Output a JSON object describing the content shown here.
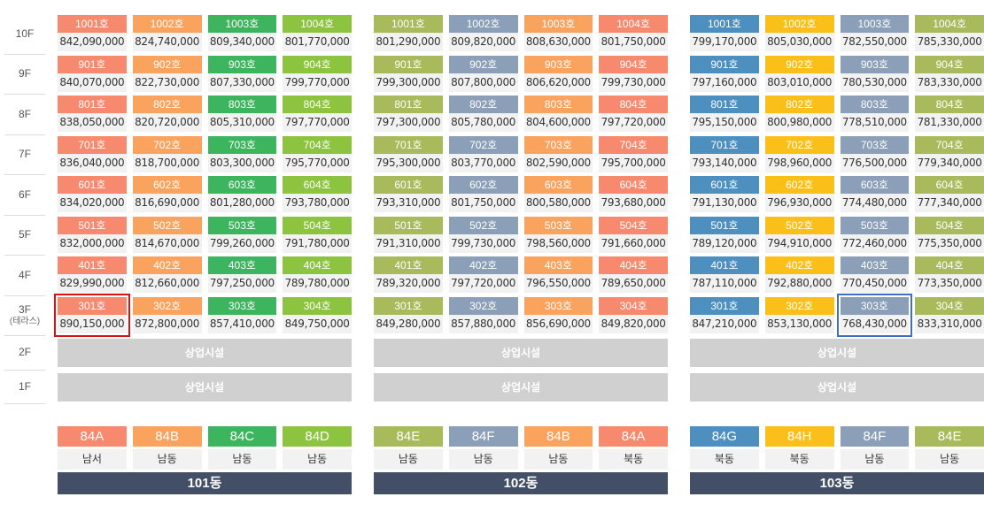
{
  "colors": {
    "salmon": "#f7896f",
    "orange": "#f9a35f",
    "green": "#3db55e",
    "lime": "#8dc43f",
    "olive": "#a9ba5c",
    "slate": "#8c9fb8",
    "blue": "#4d8fbf",
    "gold": "#fbbf1a",
    "commercial_gray": "#d0d0d0",
    "building_label": "#434f66",
    "highlight_red": "#dd1111",
    "highlight_blue": "#3f6fc4"
  },
  "floors": [
    {
      "label": "10F",
      "sub": ""
    },
    {
      "label": "9F",
      "sub": ""
    },
    {
      "label": "8F",
      "sub": ""
    },
    {
      "label": "7F",
      "sub": ""
    },
    {
      "label": "6F",
      "sub": ""
    },
    {
      "label": "5F",
      "sub": ""
    },
    {
      "label": "4F",
      "sub": ""
    },
    {
      "label": "3F",
      "sub": "(테라스)"
    },
    {
      "label": "2F",
      "sub": ""
    },
    {
      "label": "1F",
      "sub": ""
    }
  ],
  "buildings": [
    {
      "name": "101동",
      "column_colors": [
        "salmon",
        "orange",
        "green",
        "lime"
      ],
      "types": [
        "84A",
        "84B",
        "84C",
        "84D"
      ],
      "directions": [
        "남서",
        "남동",
        "남동",
        "남동"
      ],
      "commercial": [
        "상업시설",
        "상업시설"
      ],
      "rows": [
        [
          [
            "1001호",
            "842,090,000"
          ],
          [
            "1002호",
            "824,740,000"
          ],
          [
            "1003호",
            "809,340,000"
          ],
          [
            "1004호",
            "801,770,000"
          ]
        ],
        [
          [
            "901호",
            "840,070,000"
          ],
          [
            "902호",
            "822,730,000"
          ],
          [
            "903호",
            "807,330,000"
          ],
          [
            "904호",
            "799,770,000"
          ]
        ],
        [
          [
            "801호",
            "838,050,000"
          ],
          [
            "802호",
            "820,720,000"
          ],
          [
            "803호",
            "805,310,000"
          ],
          [
            "804호",
            "797,770,000"
          ]
        ],
        [
          [
            "701호",
            "836,040,000"
          ],
          [
            "702호",
            "818,700,000"
          ],
          [
            "703호",
            "803,300,000"
          ],
          [
            "704호",
            "795,770,000"
          ]
        ],
        [
          [
            "601호",
            "834,020,000"
          ],
          [
            "602호",
            "816,690,000"
          ],
          [
            "603호",
            "801,280,000"
          ],
          [
            "604호",
            "793,780,000"
          ]
        ],
        [
          [
            "501호",
            "832,000,000"
          ],
          [
            "502호",
            "814,670,000"
          ],
          [
            "503호",
            "799,260,000"
          ],
          [
            "504호",
            "791,780,000"
          ]
        ],
        [
          [
            "401호",
            "829,990,000"
          ],
          [
            "402호",
            "812,660,000"
          ],
          [
            "403호",
            "797,250,000"
          ],
          [
            "404호",
            "789,780,000"
          ]
        ],
        [
          [
            "301호",
            "890,150,000"
          ],
          [
            "302호",
            "872,800,000"
          ],
          [
            "303호",
            "857,410,000"
          ],
          [
            "304호",
            "849,750,000"
          ]
        ]
      ]
    },
    {
      "name": "102동",
      "column_colors": [
        "olive",
        "slate",
        "orange",
        "salmon"
      ],
      "types": [
        "84E",
        "84F",
        "84B",
        "84A"
      ],
      "directions": [
        "남동",
        "남동",
        "남동",
        "북동"
      ],
      "commercial": [
        "상업시설",
        "상업시설"
      ],
      "rows": [
        [
          [
            "1001호",
            "801,290,000"
          ],
          [
            "1002호",
            "809,820,000"
          ],
          [
            "1003호",
            "808,630,000"
          ],
          [
            "1004호",
            "801,750,000"
          ]
        ],
        [
          [
            "901호",
            "799,300,000"
          ],
          [
            "902호",
            "807,800,000"
          ],
          [
            "903호",
            "806,620,000"
          ],
          [
            "904호",
            "799,730,000"
          ]
        ],
        [
          [
            "801호",
            "797,300,000"
          ],
          [
            "802호",
            "805,780,000"
          ],
          [
            "803호",
            "804,600,000"
          ],
          [
            "804호",
            "797,720,000"
          ]
        ],
        [
          [
            "701호",
            "795,300,000"
          ],
          [
            "702호",
            "803,770,000"
          ],
          [
            "703호",
            "802,590,000"
          ],
          [
            "704호",
            "795,700,000"
          ]
        ],
        [
          [
            "601호",
            "793,310,000"
          ],
          [
            "602호",
            "801,750,000"
          ],
          [
            "603호",
            "800,580,000"
          ],
          [
            "604호",
            "793,680,000"
          ]
        ],
        [
          [
            "501호",
            "791,310,000"
          ],
          [
            "502호",
            "799,730,000"
          ],
          [
            "503호",
            "798,560,000"
          ],
          [
            "504호",
            "791,660,000"
          ]
        ],
        [
          [
            "401호",
            "789,320,000"
          ],
          [
            "402호",
            "797,720,000"
          ],
          [
            "403호",
            "796,550,000"
          ],
          [
            "404호",
            "789,650,000"
          ]
        ],
        [
          [
            "301호",
            "849,280,000"
          ],
          [
            "302호",
            "857,880,000"
          ],
          [
            "303호",
            "856,690,000"
          ],
          [
            "304호",
            "849,820,000"
          ]
        ]
      ]
    },
    {
      "name": "103동",
      "column_colors": [
        "blue",
        "gold",
        "slate",
        "olive"
      ],
      "types": [
        "84G",
        "84H",
        "84F",
        "84E"
      ],
      "directions": [
        "북동",
        "북동",
        "남동",
        "남동"
      ],
      "commercial": [
        "상업시설",
        "상업시설"
      ],
      "rows": [
        [
          [
            "1001호",
            "799,170,000"
          ],
          [
            "1002호",
            "805,030,000"
          ],
          [
            "1003호",
            "782,550,000"
          ],
          [
            "1004호",
            "785,330,000"
          ]
        ],
        [
          [
            "901호",
            "797,160,000"
          ],
          [
            "902호",
            "803,010,000"
          ],
          [
            "903호",
            "780,530,000"
          ],
          [
            "904호",
            "783,330,000"
          ]
        ],
        [
          [
            "801호",
            "795,150,000"
          ],
          [
            "802호",
            "800,980,000"
          ],
          [
            "803호",
            "778,510,000"
          ],
          [
            "804호",
            "781,330,000"
          ]
        ],
        [
          [
            "701호",
            "793,140,000"
          ],
          [
            "702호",
            "798,960,000"
          ],
          [
            "703호",
            "776,500,000"
          ],
          [
            "704호",
            "779,340,000"
          ]
        ],
        [
          [
            "601호",
            "791,130,000"
          ],
          [
            "602호",
            "796,930,000"
          ],
          [
            "603호",
            "774,480,000"
          ],
          [
            "604호",
            "777,340,000"
          ]
        ],
        [
          [
            "501호",
            "789,120,000"
          ],
          [
            "502호",
            "794,910,000"
          ],
          [
            "503호",
            "772,460,000"
          ],
          [
            "504호",
            "775,350,000"
          ]
        ],
        [
          [
            "401호",
            "787,110,000"
          ],
          [
            "402호",
            "792,880,000"
          ],
          [
            "403호",
            "770,450,000"
          ],
          [
            "404호",
            "773,350,000"
          ]
        ],
        [
          [
            "301호",
            "847,210,000"
          ],
          [
            "302호",
            "853,130,000"
          ],
          [
            "303호",
            "768,430,000"
          ],
          [
            "304호",
            "833,310,000"
          ]
        ]
      ]
    }
  ],
  "highlights": [
    {
      "building": 0,
      "row": 7,
      "col": 0,
      "style": "red"
    },
    {
      "building": 2,
      "row": 7,
      "col": 2,
      "style": "blue"
    }
  ]
}
